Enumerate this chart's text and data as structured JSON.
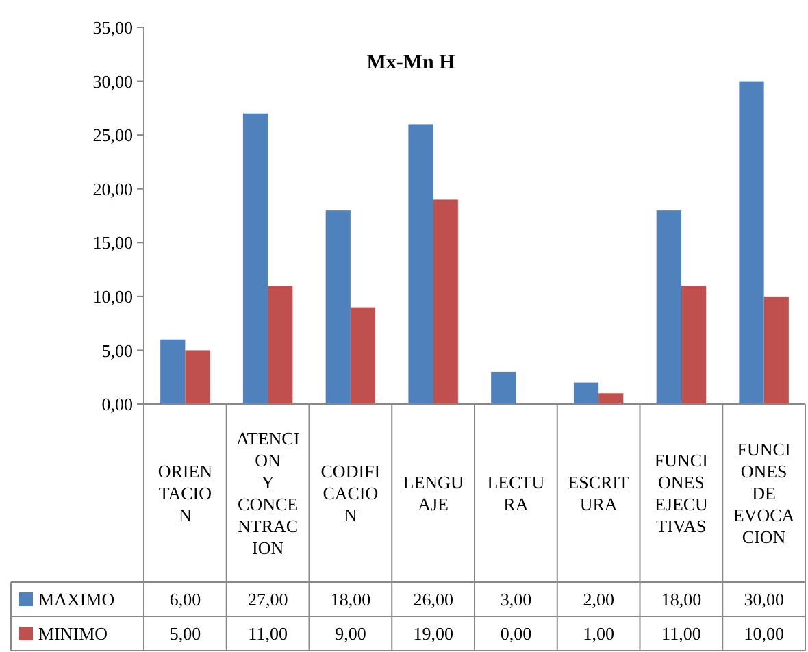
{
  "chart_data": {
    "type": "bar",
    "title": "Mx-Mn H",
    "categories": [
      "ORIENTACION",
      "ATENCION Y CONCENTRACION",
      "CODIFICACION",
      "LENGUAJE",
      "LECTURA",
      "ESCRITURA",
      "FUNCIONES EJECUTIVAS",
      "FUNCIONES DE EVOCACION"
    ],
    "series": [
      {
        "name": "MAXIMO",
        "color": "#4f81bd",
        "values": [
          6,
          27,
          18,
          26,
          3,
          2,
          18,
          30
        ],
        "value_labels": [
          "6,00",
          "27,00",
          "18,00",
          "26,00",
          "3,00",
          "2,00",
          "18,00",
          "30,00"
        ]
      },
      {
        "name": "MINIMO",
        "color": "#c0504d",
        "values": [
          5,
          11,
          9,
          19,
          0,
          1,
          11,
          10
        ],
        "value_labels": [
          "5,00",
          "11,00",
          "9,00",
          "19,00",
          "0,00",
          "1,00",
          "11,00",
          "10,00"
        ]
      }
    ],
    "ylim": [
      0,
      35
    ],
    "yticks": [
      {
        "value": 0,
        "label": "0,00"
      },
      {
        "value": 5,
        "label": "5,00"
      },
      {
        "value": 10,
        "label": "10,00"
      },
      {
        "value": 15,
        "label": "15,00"
      },
      {
        "value": 20,
        "label": "20,00"
      },
      {
        "value": 25,
        "label": "25,00"
      },
      {
        "value": 30,
        "label": "30,00"
      },
      {
        "value": 35,
        "label": "35,00"
      }
    ],
    "grid": false,
    "legend": "bottom left"
  }
}
